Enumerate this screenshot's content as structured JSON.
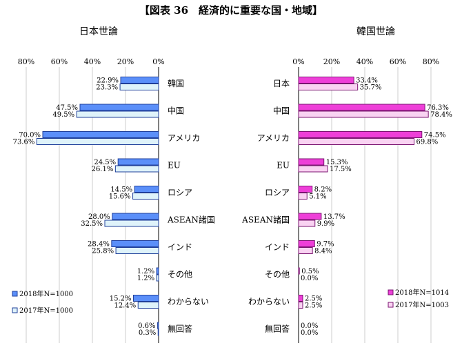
{
  "title": "【図表 36　経済的に重要な国・地域】",
  "colors": {
    "japan_2018_fill": "#5b8ff9",
    "japan_2018_stroke": "#1f3f9a",
    "japan_2017_fill": "#dff3fa",
    "japan_2017_stroke": "#1f3f9a",
    "korea_2018_fill": "#ee3fd8",
    "korea_2018_stroke": "#7a1470",
    "korea_2017_fill": "#f9d3f2",
    "korea_2017_stroke": "#7a1470",
    "grid": "#c0c0c0",
    "axis": "#000000"
  },
  "chart_data": [
    {
      "type": "bar",
      "orientation": "horizontal",
      "direction": "right-to-left",
      "title": "日本世論",
      "xlim": [
        0,
        80
      ],
      "ticks": [
        80,
        60,
        40,
        20,
        0
      ],
      "tick_labels": [
        "80%",
        "60%",
        "40%",
        "20%",
        "0%"
      ],
      "grid": true,
      "legend_position": "bottom-left",
      "categories": [
        "韓国",
        "中国",
        "アメリカ",
        "EU",
        "ロシア",
        "ASEAN諸国",
        "インド",
        "その他",
        "わからない",
        "無回答"
      ],
      "series": [
        {
          "name": "2018年N=1000",
          "values": [
            22.9,
            47.5,
            70.0,
            24.5,
            14.5,
            28.0,
            28.4,
            1.2,
            15.2,
            0.6
          ],
          "labels": [
            "22.9%",
            "47.5%",
            "70.0%",
            "24.5%",
            "14.5%",
            "28.0%",
            "28.4%",
            "1.2%",
            "15.2%",
            "0.6%"
          ]
        },
        {
          "name": "2017年N=1000",
          "values": [
            23.3,
            49.5,
            73.6,
            26.1,
            15.6,
            32.5,
            25.8,
            1.2,
            12.4,
            0.3
          ],
          "labels": [
            "23.3%",
            "49.5%",
            "73.6%",
            "26.1%",
            "15.6%",
            "32.5%",
            "25.8%",
            "1.2%",
            "12.4%",
            "0.3%"
          ]
        }
      ]
    },
    {
      "type": "bar",
      "orientation": "horizontal",
      "direction": "left-to-right",
      "title": "韓国世論",
      "xlim": [
        0,
        80
      ],
      "ticks": [
        0,
        20,
        40,
        60,
        80
      ],
      "tick_labels": [
        "0%",
        "20%",
        "40%",
        "60%",
        "80%"
      ],
      "grid": true,
      "legend_position": "bottom-right",
      "categories": [
        "日本",
        "中国",
        "アメリカ",
        "EU",
        "ロシア",
        "ASEAN諸国",
        "インド",
        "その他",
        "わからない",
        "無回答"
      ],
      "series": [
        {
          "name": "2018年N=1014",
          "values": [
            33.4,
            76.3,
            74.5,
            15.3,
            8.2,
            13.7,
            9.7,
            0.5,
            2.5,
            0.0
          ],
          "labels": [
            "33.4%",
            "76.3%",
            "74.5%",
            "15.3%",
            "8.2%",
            "13.7%",
            "9.7%",
            "0.5%",
            "2.5%",
            "0.0%"
          ]
        },
        {
          "name": "2017年N=1003",
          "values": [
            35.7,
            78.4,
            69.8,
            17.5,
            5.1,
            9.9,
            8.4,
            0.0,
            2.5,
            0.0
          ],
          "labels": [
            "35.7%",
            "78.4%",
            "69.8%",
            "17.5%",
            "5.1%",
            "9.9%",
            "8.4%",
            "0.0%",
            "2.5%",
            "0.0%"
          ]
        }
      ]
    }
  ]
}
